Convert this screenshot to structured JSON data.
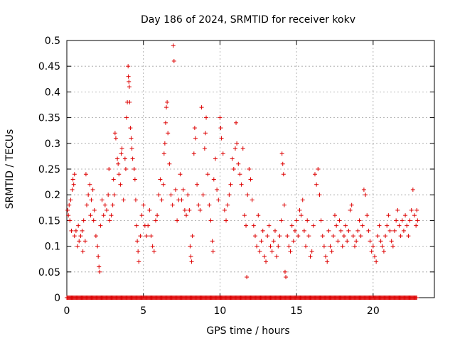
{
  "chart_data": {
    "type": "scatter",
    "title": "Day 186 of 2024, SRMTID for receiver kokv",
    "xlabel": "GPS time / hours",
    "ylabel": "SRMTID / TECUs",
    "xlim": [
      0,
      24
    ],
    "ylim": [
      0,
      0.5
    ],
    "xticks": [
      0,
      5,
      10,
      15,
      20
    ],
    "yticks": [
      0,
      0.05,
      0.1,
      0.15,
      0.2,
      0.25,
      0.3,
      0.35,
      0.4,
      0.45,
      0.5
    ],
    "ytick_labels": [
      "0",
      "0.05",
      "0.1",
      "0.15",
      "0.2",
      "0.25",
      "0.3",
      "0.35",
      "0.4",
      "0.45",
      "0.5"
    ],
    "grid": true,
    "marker": "plus",
    "color": "#dd0000",
    "series": [
      {
        "name": "SRMTID",
        "points": [
          [
            0.05,
            0.17
          ],
          [
            0.1,
            0.16
          ],
          [
            0.15,
            0.18
          ],
          [
            0.2,
            0.15
          ],
          [
            0.25,
            0.19
          ],
          [
            0.3,
            0.13
          ],
          [
            0.35,
            0.21
          ],
          [
            0.4,
            0.23
          ],
          [
            0.45,
            0.22
          ],
          [
            0.5,
            0.24
          ],
          [
            0.5,
            0.12
          ],
          [
            0.6,
            0.13
          ],
          [
            0.7,
            0.1
          ],
          [
            0.75,
            0.14
          ],
          [
            0.8,
            0.11
          ],
          [
            0.9,
            0.12
          ],
          [
            1.0,
            0.13
          ],
          [
            1.05,
            0.09
          ],
          [
            1.1,
            0.15
          ],
          [
            1.2,
            0.11
          ],
          [
            1.25,
            0.24
          ],
          [
            1.3,
            0.18
          ],
          [
            1.4,
            0.2
          ],
          [
            1.5,
            0.22
          ],
          [
            1.55,
            0.16
          ],
          [
            1.6,
            0.19
          ],
          [
            1.7,
            0.21
          ],
          [
            1.75,
            0.15
          ],
          [
            1.8,
            0.17
          ],
          [
            1.9,
            0.12
          ],
          [
            2.0,
            0.1
          ],
          [
            2.05,
            0.08
          ],
          [
            2.1,
            0.06
          ],
          [
            2.15,
            0.05
          ],
          [
            2.2,
            0.14
          ],
          [
            2.3,
            0.19
          ],
          [
            2.4,
            0.16
          ],
          [
            2.5,
            0.18
          ],
          [
            2.6,
            0.17
          ],
          [
            2.7,
            0.2
          ],
          [
            2.75,
            0.25
          ],
          [
            2.8,
            0.15
          ],
          [
            2.9,
            0.16
          ],
          [
            3.0,
            0.18
          ],
          [
            3.05,
            0.23
          ],
          [
            3.1,
            0.2
          ],
          [
            3.15,
            0.32
          ],
          [
            3.2,
            0.31
          ],
          [
            3.3,
            0.27
          ],
          [
            3.35,
            0.26
          ],
          [
            3.4,
            0.24
          ],
          [
            3.5,
            0.22
          ],
          [
            3.55,
            0.28
          ],
          [
            3.6,
            0.29
          ],
          [
            3.7,
            0.19
          ],
          [
            3.8,
            0.27
          ],
          [
            3.85,
            0.25
          ],
          [
            3.9,
            0.35
          ],
          [
            3.95,
            0.38
          ],
          [
            4.0,
            0.45
          ],
          [
            4.02,
            0.43
          ],
          [
            4.05,
            0.42
          ],
          [
            4.08,
            0.41
          ],
          [
            4.1,
            0.38
          ],
          [
            4.15,
            0.33
          ],
          [
            4.2,
            0.31
          ],
          [
            4.25,
            0.29
          ],
          [
            4.3,
            0.27
          ],
          [
            4.4,
            0.25
          ],
          [
            4.45,
            0.23
          ],
          [
            4.5,
            0.19
          ],
          [
            4.55,
            0.14
          ],
          [
            4.6,
            0.11
          ],
          [
            4.65,
            0.09
          ],
          [
            4.7,
            0.07
          ],
          [
            4.8,
            0.12
          ],
          [
            4.9,
            0.16
          ],
          [
            5.0,
            0.18
          ],
          [
            5.1,
            0.14
          ],
          [
            5.2,
            0.12
          ],
          [
            5.3,
            0.14
          ],
          [
            5.4,
            0.17
          ],
          [
            5.5,
            0.12
          ],
          [
            5.6,
            0.1
          ],
          [
            5.7,
            0.09
          ],
          [
            5.8,
            0.15
          ],
          [
            5.9,
            0.16
          ],
          [
            6.0,
            0.2
          ],
          [
            6.1,
            0.23
          ],
          [
            6.2,
            0.19
          ],
          [
            6.3,
            0.22
          ],
          [
            6.35,
            0.28
          ],
          [
            6.4,
            0.3
          ],
          [
            6.45,
            0.34
          ],
          [
            6.5,
            0.37
          ],
          [
            6.55,
            0.38
          ],
          [
            6.6,
            0.32
          ],
          [
            6.7,
            0.26
          ],
          [
            6.8,
            0.2
          ],
          [
            6.9,
            0.18
          ],
          [
            6.95,
            0.49
          ],
          [
            7.0,
            0.46
          ],
          [
            7.1,
            0.21
          ],
          [
            7.2,
            0.15
          ],
          [
            7.3,
            0.19
          ],
          [
            7.4,
            0.24
          ],
          [
            7.5,
            0.19
          ],
          [
            7.6,
            0.21
          ],
          [
            7.7,
            0.17
          ],
          [
            7.8,
            0.16
          ],
          [
            7.9,
            0.2
          ],
          [
            8.0,
            0.17
          ],
          [
            8.05,
            0.1
          ],
          [
            8.1,
            0.08
          ],
          [
            8.15,
            0.07
          ],
          [
            8.2,
            0.12
          ],
          [
            8.3,
            0.28
          ],
          [
            8.35,
            0.33
          ],
          [
            8.4,
            0.31
          ],
          [
            8.5,
            0.22
          ],
          [
            8.6,
            0.18
          ],
          [
            8.7,
            0.17
          ],
          [
            8.8,
            0.37
          ],
          [
            8.9,
            0.2
          ],
          [
            9.0,
            0.29
          ],
          [
            9.05,
            0.32
          ],
          [
            9.1,
            0.35
          ],
          [
            9.2,
            0.24
          ],
          [
            9.3,
            0.18
          ],
          [
            9.4,
            0.15
          ],
          [
            9.5,
            0.11
          ],
          [
            9.55,
            0.09
          ],
          [
            9.6,
            0.23
          ],
          [
            9.7,
            0.27
          ],
          [
            9.8,
            0.21
          ],
          [
            9.9,
            0.19
          ],
          [
            10.0,
            0.35
          ],
          [
            10.05,
            0.33
          ],
          [
            10.1,
            0.31
          ],
          [
            10.2,
            0.28
          ],
          [
            10.3,
            0.17
          ],
          [
            10.4,
            0.15
          ],
          [
            10.5,
            0.18
          ],
          [
            10.6,
            0.2
          ],
          [
            10.7,
            0.22
          ],
          [
            10.8,
            0.27
          ],
          [
            10.9,
            0.25
          ],
          [
            11.0,
            0.29
          ],
          [
            11.05,
            0.34
          ],
          [
            11.1,
            0.3
          ],
          [
            11.2,
            0.26
          ],
          [
            11.3,
            0.24
          ],
          [
            11.4,
            0.22
          ],
          [
            11.5,
            0.29
          ],
          [
            11.6,
            0.16
          ],
          [
            11.7,
            0.14
          ],
          [
            11.75,
            0.04
          ],
          [
            11.8,
            0.2
          ],
          [
            11.9,
            0.25
          ],
          [
            12.0,
            0.23
          ],
          [
            12.1,
            0.19
          ],
          [
            12.2,
            0.14
          ],
          [
            12.3,
            0.12
          ],
          [
            12.4,
            0.1
          ],
          [
            12.5,
            0.16
          ],
          [
            12.6,
            0.09
          ],
          [
            12.7,
            0.11
          ],
          [
            12.8,
            0.13
          ],
          [
            12.9,
            0.08
          ],
          [
            13.0,
            0.07
          ],
          [
            13.1,
            0.12
          ],
          [
            13.2,
            0.14
          ],
          [
            13.3,
            0.1
          ],
          [
            13.4,
            0.09
          ],
          [
            13.5,
            0.11
          ],
          [
            13.6,
            0.13
          ],
          [
            13.7,
            0.08
          ],
          [
            13.8,
            0.1
          ],
          [
            13.9,
            0.12
          ],
          [
            14.0,
            0.15
          ],
          [
            14.05,
            0.28
          ],
          [
            14.1,
            0.26
          ],
          [
            14.15,
            0.24
          ],
          [
            14.2,
            0.18
          ],
          [
            14.25,
            0.05
          ],
          [
            14.3,
            0.04
          ],
          [
            14.4,
            0.12
          ],
          [
            14.5,
            0.1
          ],
          [
            14.6,
            0.09
          ],
          [
            14.7,
            0.14
          ],
          [
            14.8,
            0.11
          ],
          [
            14.9,
            0.13
          ],
          [
            15.0,
            0.15
          ],
          [
            15.1,
            0.12
          ],
          [
            15.2,
            0.17
          ],
          [
            15.3,
            0.16
          ],
          [
            15.4,
            0.19
          ],
          [
            15.5,
            0.13
          ],
          [
            15.6,
            0.1
          ],
          [
            15.7,
            0.15
          ],
          [
            15.8,
            0.12
          ],
          [
            15.9,
            0.08
          ],
          [
            16.0,
            0.09
          ],
          [
            16.1,
            0.14
          ],
          [
            16.2,
            0.24
          ],
          [
            16.3,
            0.22
          ],
          [
            16.4,
            0.25
          ],
          [
            16.5,
            0.2
          ],
          [
            16.6,
            0.15
          ],
          [
            16.7,
            0.12
          ],
          [
            16.8,
            0.1
          ],
          [
            16.9,
            0.08
          ],
          [
            17.0,
            0.07
          ],
          [
            17.1,
            0.13
          ],
          [
            17.2,
            0.1
          ],
          [
            17.3,
            0.09
          ],
          [
            17.4,
            0.12
          ],
          [
            17.5,
            0.16
          ],
          [
            17.6,
            0.14
          ],
          [
            17.7,
            0.11
          ],
          [
            17.8,
            0.15
          ],
          [
            17.9,
            0.13
          ],
          [
            18.0,
            0.1
          ],
          [
            18.1,
            0.12
          ],
          [
            18.2,
            0.14
          ],
          [
            18.3,
            0.11
          ],
          [
            18.4,
            0.13
          ],
          [
            18.5,
            0.17
          ],
          [
            18.6,
            0.18
          ],
          [
            18.7,
            0.12
          ],
          [
            18.8,
            0.1
          ],
          [
            18.9,
            0.11
          ],
          [
            19.0,
            0.13
          ],
          [
            19.1,
            0.15
          ],
          [
            19.2,
            0.12
          ],
          [
            19.3,
            0.14
          ],
          [
            19.4,
            0.21
          ],
          [
            19.5,
            0.2
          ],
          [
            19.6,
            0.16
          ],
          [
            19.7,
            0.13
          ],
          [
            19.8,
            0.11
          ],
          [
            19.9,
            0.09
          ],
          [
            20.0,
            0.1
          ],
          [
            20.1,
            0.08
          ],
          [
            20.2,
            0.07
          ],
          [
            20.3,
            0.12
          ],
          [
            20.4,
            0.14
          ],
          [
            20.5,
            0.11
          ],
          [
            20.6,
            0.1
          ],
          [
            20.7,
            0.09
          ],
          [
            20.8,
            0.12
          ],
          [
            20.9,
            0.14
          ],
          [
            21.0,
            0.16
          ],
          [
            21.1,
            0.13
          ],
          [
            21.2,
            0.11
          ],
          [
            21.3,
            0.1
          ],
          [
            21.4,
            0.13
          ],
          [
            21.5,
            0.15
          ],
          [
            21.6,
            0.17
          ],
          [
            21.7,
            0.14
          ],
          [
            21.8,
            0.12
          ],
          [
            21.9,
            0.15
          ],
          [
            22.0,
            0.13
          ],
          [
            22.1,
            0.16
          ],
          [
            22.2,
            0.14
          ],
          [
            22.3,
            0.12
          ],
          [
            22.4,
            0.15
          ],
          [
            22.5,
            0.17
          ],
          [
            22.6,
            0.21
          ],
          [
            22.7,
            0.16
          ],
          [
            22.8,
            0.14
          ],
          [
            22.85,
            0.17
          ],
          [
            22.9,
            0.15
          ]
        ]
      }
    ],
    "zero_band": {
      "x_start": 0,
      "x_end": 22.9,
      "y": 0,
      "description": "dense row of markers at zero"
    }
  }
}
